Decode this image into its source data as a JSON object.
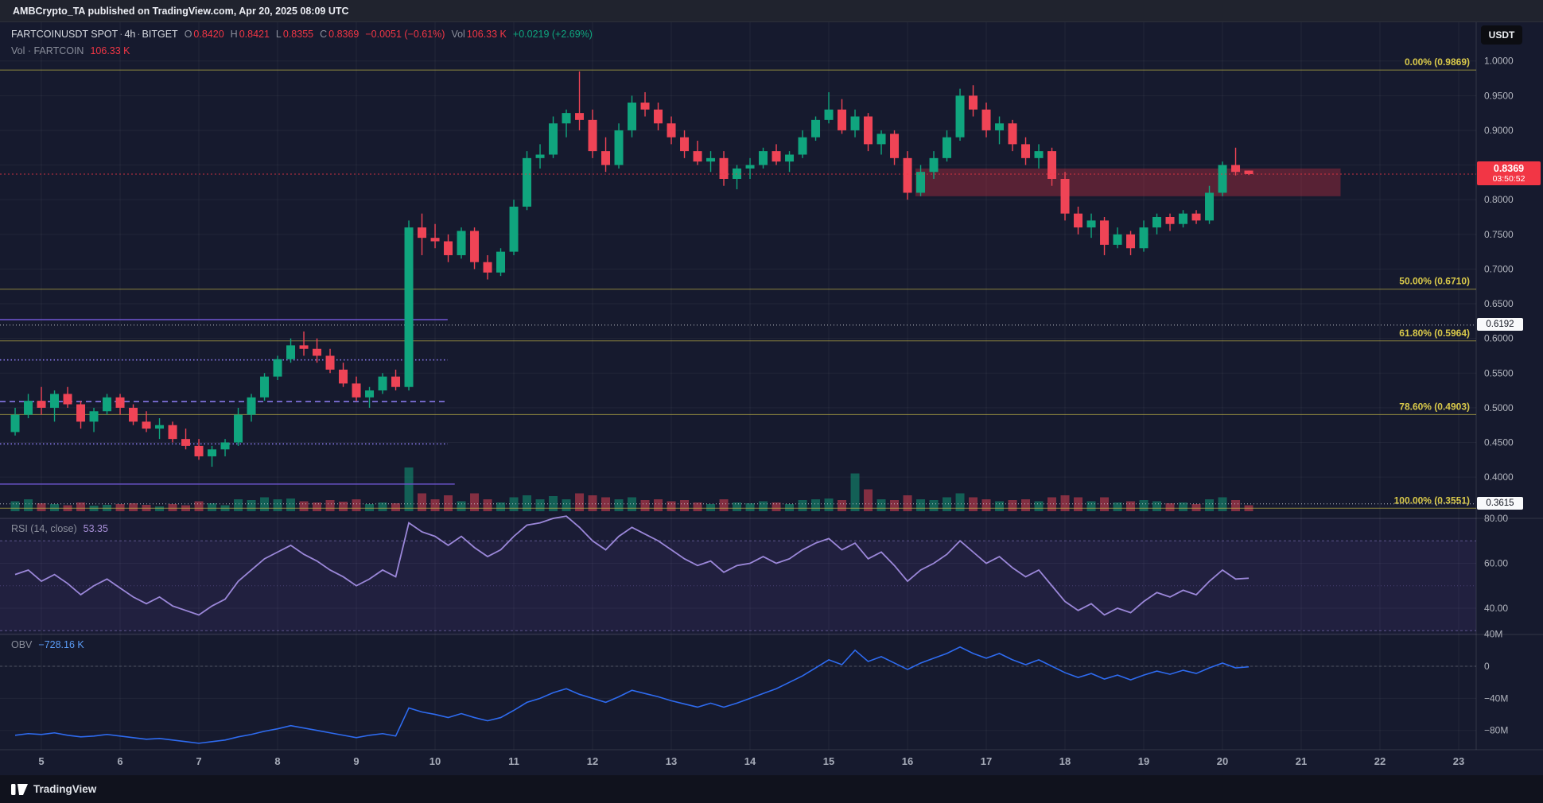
{
  "meta": {
    "attribution": "AMBCrypto_TA published on TradingView.com, Apr 20, 2025 08:09 UTC"
  },
  "header": {
    "symbol": "FARTCOINUSDT SPOT",
    "sep": "·",
    "interval": "4h",
    "exchange": "BITGET",
    "o_label": "O",
    "o": "0.8420",
    "h_label": "H",
    "h": "0.8421",
    "l_label": "L",
    "l": "0.8355",
    "c_label": "C",
    "c": "0.8369",
    "change": "−0.0051 (−0.61%)",
    "vol_label": "Vol",
    "vol": "106.33 K",
    "vol_change": "+0.0219 (+2.69%)",
    "currency": "USDT"
  },
  "vol_row": {
    "label": "Vol · FARTCOIN",
    "value": "106.33 K"
  },
  "indicators": {
    "rsi": {
      "label": "RSI (14, close)",
      "value": "53.35"
    },
    "obv": {
      "label": "OBV",
      "value": "−728.16 K"
    }
  },
  "badges": {
    "price": "0.8369",
    "countdown": "03:50:52",
    "hline1": "0.6192",
    "hline2": "0.3615"
  },
  "footer": {
    "logo_text": "TradingView"
  },
  "colors": {
    "up": "#10a57e",
    "down": "#ef4456",
    "vol_up": "rgba(16,165,126,0.5)",
    "vol_down": "rgba(239,68,86,0.5)",
    "rsi": "#9b87d9",
    "obv": "#2e6bf0",
    "fib_line": "rgba(217,201,74,0.6)",
    "fib_text": "#d9c94a",
    "zone": "rgba(242,54,69,0.30)",
    "hline_white": "rgba(230,232,240,0.8)",
    "current_price": "#f23645",
    "axis_text": "#b2b5be",
    "time_text": "#a6abb8",
    "grid": "rgba(255,255,255,0.05)",
    "frame": "rgba(255,255,255,0.12)"
  },
  "chart_data": {
    "type": "candlestick",
    "symbol": "FARTCOINUSDT",
    "interval": "4h",
    "start_day": 4.667,
    "current_price": 0.8369,
    "x_axis": {
      "unit": "day of April 2025",
      "days": [
        5,
        6,
        7,
        8,
        9,
        10,
        11,
        12,
        13,
        14,
        15,
        16,
        17,
        18,
        19,
        20,
        21,
        22,
        23
      ]
    },
    "price_axis": {
      "visible_range": [
        0.35,
        1.005
      ],
      "ticks": [
        {
          "v": 1.0,
          "label": "1.0000"
        },
        {
          "v": 0.95,
          "label": "0.9500"
        },
        {
          "v": 0.9,
          "label": "0.9000"
        },
        {
          "v": 0.85,
          "label": "0.8500"
        },
        {
          "v": 0.8,
          "label": "0.8000"
        },
        {
          "v": 0.75,
          "label": "0.7500"
        },
        {
          "v": 0.7,
          "label": "0.7000"
        },
        {
          "v": 0.65,
          "label": "0.6500"
        },
        {
          "v": 0.6,
          "label": "0.6000"
        },
        {
          "v": 0.55,
          "label": "0.5500"
        },
        {
          "v": 0.5,
          "label": "0.5000"
        },
        {
          "v": 0.45,
          "label": "0.4500"
        },
        {
          "v": 0.4,
          "label": "0.4000"
        }
      ]
    },
    "fib_levels": [
      {
        "label": "0.00% (0.9869)",
        "price": 0.9869
      },
      {
        "label": "50.00% (0.6710)",
        "price": 0.671
      },
      {
        "label": "61.80% (0.5964)",
        "price": 0.5964
      },
      {
        "label": "78.60% (0.4903)",
        "price": 0.4903
      },
      {
        "label": "100.00% (0.3551)",
        "price": 0.3551
      }
    ],
    "hlines": [
      {
        "price": 0.6192
      },
      {
        "price": 0.3615
      }
    ],
    "zone": {
      "day_start": 16.1,
      "day_end": 21.5,
      "price_top": 0.845,
      "price_bottom": 0.805
    },
    "drawings": [
      {
        "style": "solid",
        "price": 0.627,
        "day_start": 4.45,
        "day_end": 10.16,
        "color": "#6a53c9"
      },
      {
        "style": "dotted",
        "price": 0.569,
        "day_start": 4.45,
        "day_end": 10.16,
        "color": "#8677e8"
      },
      {
        "style": "dashed",
        "price": 0.509,
        "day_start": 4.45,
        "day_end": 10.16,
        "color": "#8677e8"
      },
      {
        "style": "dotted",
        "price": 0.448,
        "day_start": 4.45,
        "day_end": 10.16,
        "color": "#8677e8"
      },
      {
        "style": "solid",
        "price": 0.39,
        "day_start": 4.45,
        "day_end": 10.25,
        "color": "#6a53c9"
      }
    ],
    "candles": [
      [
        0.465,
        0.5,
        0.46,
        0.49,
        25
      ],
      [
        0.49,
        0.52,
        0.485,
        0.51,
        30
      ],
      [
        0.51,
        0.53,
        0.49,
        0.5,
        20
      ],
      [
        0.5,
        0.525,
        0.48,
        0.52,
        18
      ],
      [
        0.52,
        0.53,
        0.5,
        0.505,
        15
      ],
      [
        0.505,
        0.51,
        0.47,
        0.48,
        22
      ],
      [
        0.48,
        0.5,
        0.465,
        0.495,
        14
      ],
      [
        0.495,
        0.52,
        0.49,
        0.515,
        16
      ],
      [
        0.515,
        0.52,
        0.49,
        0.5,
        18
      ],
      [
        0.5,
        0.505,
        0.475,
        0.48,
        20
      ],
      [
        0.48,
        0.495,
        0.465,
        0.47,
        16
      ],
      [
        0.47,
        0.485,
        0.455,
        0.475,
        12
      ],
      [
        0.475,
        0.48,
        0.45,
        0.455,
        18
      ],
      [
        0.455,
        0.47,
        0.44,
        0.445,
        15
      ],
      [
        0.445,
        0.455,
        0.425,
        0.43,
        25
      ],
      [
        0.43,
        0.445,
        0.415,
        0.44,
        20
      ],
      [
        0.44,
        0.455,
        0.43,
        0.45,
        15
      ],
      [
        0.45,
        0.5,
        0.445,
        0.49,
        30
      ],
      [
        0.49,
        0.52,
        0.48,
        0.515,
        28
      ],
      [
        0.515,
        0.55,
        0.51,
        0.545,
        35
      ],
      [
        0.545,
        0.575,
        0.54,
        0.57,
        30
      ],
      [
        0.57,
        0.6,
        0.565,
        0.59,
        32
      ],
      [
        0.59,
        0.61,
        0.575,
        0.585,
        25
      ],
      [
        0.585,
        0.6,
        0.565,
        0.575,
        22
      ],
      [
        0.575,
        0.585,
        0.55,
        0.555,
        28
      ],
      [
        0.555,
        0.565,
        0.53,
        0.535,
        24
      ],
      [
        0.535,
        0.545,
        0.51,
        0.515,
        30
      ],
      [
        0.515,
        0.53,
        0.5,
        0.525,
        18
      ],
      [
        0.525,
        0.55,
        0.52,
        0.545,
        22
      ],
      [
        0.545,
        0.555,
        0.525,
        0.53,
        20
      ],
      [
        0.53,
        0.77,
        0.525,
        0.76,
        110
      ],
      [
        0.76,
        0.78,
        0.72,
        0.745,
        45
      ],
      [
        0.745,
        0.765,
        0.73,
        0.74,
        30
      ],
      [
        0.74,
        0.75,
        0.71,
        0.72,
        40
      ],
      [
        0.72,
        0.76,
        0.715,
        0.755,
        25
      ],
      [
        0.755,
        0.76,
        0.7,
        0.71,
        45
      ],
      [
        0.71,
        0.72,
        0.685,
        0.695,
        30
      ],
      [
        0.695,
        0.73,
        0.69,
        0.725,
        22
      ],
      [
        0.725,
        0.8,
        0.72,
        0.79,
        35
      ],
      [
        0.79,
        0.87,
        0.785,
        0.86,
        40
      ],
      [
        0.86,
        0.88,
        0.845,
        0.865,
        30
      ],
      [
        0.865,
        0.92,
        0.86,
        0.91,
        38
      ],
      [
        0.91,
        0.93,
        0.89,
        0.925,
        30
      ],
      [
        0.925,
        0.985,
        0.9,
        0.915,
        45
      ],
      [
        0.915,
        0.93,
        0.86,
        0.87,
        40
      ],
      [
        0.87,
        0.89,
        0.84,
        0.85,
        35
      ],
      [
        0.85,
        0.91,
        0.845,
        0.9,
        30
      ],
      [
        0.9,
        0.95,
        0.89,
        0.94,
        35
      ],
      [
        0.94,
        0.955,
        0.92,
        0.93,
        28
      ],
      [
        0.93,
        0.94,
        0.9,
        0.91,
        30
      ],
      [
        0.91,
        0.92,
        0.88,
        0.89,
        25
      ],
      [
        0.89,
        0.9,
        0.86,
        0.87,
        28
      ],
      [
        0.87,
        0.885,
        0.85,
        0.855,
        22
      ],
      [
        0.855,
        0.87,
        0.84,
        0.86,
        18
      ],
      [
        0.86,
        0.87,
        0.82,
        0.83,
        30
      ],
      [
        0.83,
        0.85,
        0.815,
        0.845,
        22
      ],
      [
        0.845,
        0.86,
        0.83,
        0.85,
        20
      ],
      [
        0.85,
        0.875,
        0.845,
        0.87,
        25
      ],
      [
        0.87,
        0.88,
        0.85,
        0.855,
        22
      ],
      [
        0.855,
        0.87,
        0.84,
        0.865,
        18
      ],
      [
        0.865,
        0.9,
        0.86,
        0.89,
        28
      ],
      [
        0.89,
        0.92,
        0.885,
        0.915,
        30
      ],
      [
        0.915,
        0.955,
        0.91,
        0.93,
        32
      ],
      [
        0.93,
        0.945,
        0.895,
        0.9,
        28
      ],
      [
        0.9,
        0.93,
        0.89,
        0.92,
        95
      ],
      [
        0.92,
        0.925,
        0.87,
        0.88,
        55
      ],
      [
        0.88,
        0.9,
        0.865,
        0.895,
        30
      ],
      [
        0.895,
        0.9,
        0.85,
        0.86,
        28
      ],
      [
        0.86,
        0.87,
        0.8,
        0.81,
        40
      ],
      [
        0.81,
        0.85,
        0.805,
        0.84,
        30
      ],
      [
        0.84,
        0.87,
        0.83,
        0.86,
        28
      ],
      [
        0.86,
        0.9,
        0.855,
        0.89,
        35
      ],
      [
        0.89,
        0.96,
        0.885,
        0.95,
        45
      ],
      [
        0.95,
        0.965,
        0.92,
        0.93,
        35
      ],
      [
        0.93,
        0.94,
        0.89,
        0.9,
        30
      ],
      [
        0.9,
        0.92,
        0.88,
        0.91,
        25
      ],
      [
        0.91,
        0.915,
        0.87,
        0.88,
        28
      ],
      [
        0.88,
        0.89,
        0.85,
        0.86,
        30
      ],
      [
        0.86,
        0.88,
        0.845,
        0.87,
        25
      ],
      [
        0.87,
        0.875,
        0.82,
        0.83,
        35
      ],
      [
        0.83,
        0.84,
        0.77,
        0.78,
        40
      ],
      [
        0.78,
        0.79,
        0.75,
        0.76,
        35
      ],
      [
        0.76,
        0.78,
        0.745,
        0.77,
        25
      ],
      [
        0.77,
        0.775,
        0.72,
        0.735,
        35
      ],
      [
        0.735,
        0.76,
        0.73,
        0.75,
        22
      ],
      [
        0.75,
        0.755,
        0.72,
        0.73,
        25
      ],
      [
        0.73,
        0.77,
        0.725,
        0.76,
        28
      ],
      [
        0.76,
        0.78,
        0.75,
        0.775,
        25
      ],
      [
        0.775,
        0.78,
        0.755,
        0.765,
        20
      ],
      [
        0.765,
        0.785,
        0.76,
        0.78,
        22
      ],
      [
        0.78,
        0.785,
        0.765,
        0.77,
        18
      ],
      [
        0.77,
        0.82,
        0.765,
        0.81,
        30
      ],
      [
        0.81,
        0.855,
        0.805,
        0.85,
        35
      ],
      [
        0.85,
        0.875,
        0.835,
        0.84,
        28
      ],
      [
        0.842,
        0.8421,
        0.8355,
        0.8369,
        15
      ]
    ],
    "rsi": {
      "period": 14,
      "source": "close",
      "current": 53.35,
      "ticks": [
        {
          "v": 80,
          "label": "80.00"
        },
        {
          "v": 60,
          "label": "60.00"
        },
        {
          "v": 40,
          "label": "40.00"
        }
      ],
      "bands": {
        "upper": 70,
        "lower": 30,
        "middle": 50
      },
      "values": [
        55,
        57,
        52,
        55,
        51,
        46,
        50,
        53,
        49,
        45,
        42,
        45,
        41,
        39,
        37,
        41,
        44,
        52,
        57,
        62,
        65,
        68,
        64,
        61,
        57,
        54,
        50,
        53,
        57,
        54,
        78,
        74,
        72,
        68,
        72,
        67,
        63,
        66,
        72,
        77,
        78,
        80,
        81,
        76,
        70,
        66,
        72,
        76,
        73,
        70,
        66,
        62,
        59,
        61,
        56,
        59,
        60,
        63,
        60,
        62,
        66,
        69,
        71,
        66,
        69,
        62,
        65,
        59,
        52,
        57,
        60,
        64,
        70,
        65,
        60,
        63,
        58,
        54,
        57,
        50,
        43,
        39,
        42,
        37,
        40,
        38,
        43,
        47,
        45,
        48,
        46,
        52,
        57,
        53,
        53.35
      ]
    },
    "obv": {
      "current_label": "−728.16 K",
      "ticks": [
        {
          "v": 40,
          "label": "40M"
        },
        {
          "v": 0,
          "label": "0"
        },
        {
          "v": -40,
          "label": "−40M"
        },
        {
          "v": -80,
          "label": "−80M"
        }
      ],
      "values_millions": [
        -86,
        -84,
        -85,
        -83,
        -86,
        -88,
        -87,
        -85,
        -87,
        -89,
        -91,
        -90,
        -92,
        -94,
        -96,
        -94,
        -92,
        -88,
        -85,
        -81,
        -78,
        -74,
        -77,
        -80,
        -83,
        -86,
        -89,
        -86,
        -84,
        -87,
        -52,
        -57,
        -60,
        -64,
        -59,
        -64,
        -68,
        -64,
        -55,
        -45,
        -40,
        -33,
        -28,
        -35,
        -40,
        -45,
        -38,
        -30,
        -34,
        -38,
        -43,
        -47,
        -51,
        -46,
        -51,
        -46,
        -40,
        -34,
        -28,
        -20,
        -12,
        -2,
        8,
        2,
        20,
        6,
        12,
        4,
        -4,
        4,
        10,
        16,
        24,
        16,
        10,
        16,
        8,
        2,
        8,
        0,
        -8,
        -14,
        -9,
        -16,
        -11,
        -17,
        -11,
        -6,
        -10,
        -5,
        -9,
        -2,
        4,
        -2,
        -0.73
      ]
    }
  }
}
